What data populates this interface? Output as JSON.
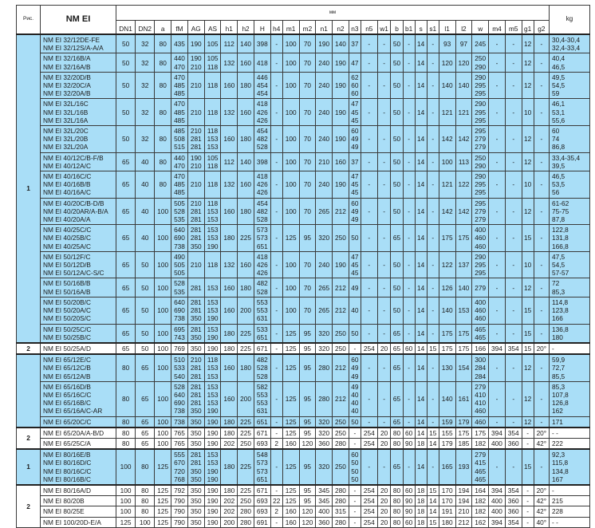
{
  "header": {
    "fig": "Рис.",
    "model": "NM EI",
    "mm": "мм",
    "kg": "kg",
    "columns": [
      "DN1",
      "DN2",
      "a",
      "fM",
      "AG",
      "AS",
      "h1",
      "h2",
      "H",
      "h4",
      "m1",
      "m2",
      "n1",
      "n2",
      "n3",
      "n5",
      "w1",
      "b",
      "b1",
      "s",
      "s1",
      "l1",
      "l2",
      "w",
      "m4",
      "m5",
      "g1",
      "g2"
    ]
  },
  "colors": {
    "blue_row": "#a9def7",
    "white_row": "#ffffff",
    "border": "#3a3a3a"
  },
  "groups": [
    {
      "fig": "1",
      "style": "blue",
      "rows": [
        [
          "NM EI  32/12DE-FE\nNM EI  32/12S/A-A/A",
          "50",
          "32",
          "80",
          "435",
          "190",
          "105",
          "112",
          "140",
          "398",
          "-",
          "100",
          "70",
          "190",
          "140",
          "37",
          "-",
          "-",
          "50",
          "-",
          "14",
          "-",
          "93",
          "97",
          "245",
          "-",
          "-",
          "12",
          "-",
          "30,4-30,4\n32,4-33,4"
        ],
        [
          "NM EI  32/16B/A\nNM EI  32/16A/B",
          "50",
          "32",
          "80",
          "440\n470",
          "190\n210",
          "105\n118",
          "132",
          "160",
          "418",
          "-",
          "100",
          "70",
          "240",
          "190",
          "47",
          "-",
          "-",
          "50",
          "-",
          "14",
          "-",
          "120",
          "120",
          "250\n290",
          "-",
          "-",
          "12",
          "-",
          "40,4\n46,5"
        ],
        [
          "NM EI  32/20D/B\nNM EI  32/20C/A\nNM EI  32/20A/B",
          "50",
          "32",
          "80",
          "470\n485\n485",
          "210",
          "118",
          "160",
          "180",
          "446\n454\n454",
          "-",
          "100",
          "70",
          "240",
          "190",
          "62\n60\n60",
          "-",
          "-",
          "50",
          "-",
          "14",
          "-",
          "140",
          "140",
          "290\n295\n295",
          "-",
          "-",
          "12",
          "-",
          "49,5\n54,5\n59"
        ],
        [
          "NM EI  32L/16C\nNM EI  32L/16B\nNM EI  32L/16A",
          "50",
          "32",
          "80",
          "470\n485\n485",
          "210",
          "118",
          "132",
          "160",
          "418\n426\n426",
          "-",
          "100",
          "70",
          "240",
          "190",
          "47\n45\n45",
          "-",
          "-",
          "50",
          "-",
          "14",
          "-",
          "121",
          "121",
          "290\n295\n295",
          "-",
          "-",
          "10",
          "-",
          "46,1\n53,1\n55,6"
        ],
        [
          "NM EI  32L/20C\nNM EI  32L/20B\nNM EI  32L/20A",
          "50",
          "32",
          "80",
          "485\n508\n515",
          "210\n281\n281",
          "118\n153\n153",
          "160",
          "180",
          "454\n482\n528",
          "-",
          "100",
          "70",
          "240",
          "190",
          "60\n49\n49",
          "-",
          "-",
          "50",
          "-",
          "14",
          "-",
          "142",
          "142",
          "295\n279\n279",
          "-",
          "-",
          "12",
          "-",
          "60\n74\n86,8"
        ],
        [
          "NM EI  40/12C/B-F/B\nNM EI  40/12A/C",
          "65",
          "40",
          "80",
          "440\n470",
          "190\n210",
          "105\n118",
          "112",
          "140",
          "398",
          "-",
          "100",
          "70",
          "210",
          "160",
          "37",
          "-",
          "-",
          "50",
          "-",
          "14",
          "-",
          "100",
          "113",
          "250\n290",
          "-",
          "-",
          "12",
          "-",
          "33,4-35,4\n39,5"
        ],
        [
          "NM EI  40/16C/C\nNM EI  40/16B/B\nNM EI  40/16A/C",
          "65",
          "40",
          "80",
          "470\n485\n485",
          "210",
          "118",
          "132",
          "160",
          "418\n426\n426",
          "-",
          "100",
          "70",
          "240",
          "190",
          "47\n45\n45",
          "-",
          "-",
          "50",
          "-",
          "14",
          "-",
          "121",
          "122",
          "290\n295\n295",
          "-",
          "-",
          "10",
          "-",
          "46,5\n53,5\n56"
        ],
        [
          "NM EI  40/20C/B-D/B\nNM EI  40/20AR/A-B/A\nNM EI  40/20A/A",
          "65",
          "40",
          "100",
          "505\n528\n535",
          "210\n281\n281",
          "118\n153\n153",
          "160",
          "180",
          "454\n482\n528",
          "-",
          "100",
          "70",
          "265",
          "212",
          "60\n49\n49",
          "-",
          "-",
          "50",
          "-",
          "14",
          "-",
          "142",
          "142",
          "295\n279\n279",
          "-",
          "-",
          "12",
          "-",
          "61-62\n75-75\n87,8"
        ],
        [
          "NM EI  40/25C/C\nNM EI  40/25B/C\nNM EI  40/25A/C",
          "65",
          "40",
          "100",
          "640\n690\n738",
          "281\n281\n350",
          "153\n153\n190",
          "180",
          "225",
          "573\n573\n651",
          "-",
          "125",
          "95",
          "320",
          "250",
          "50",
          "-",
          "-",
          "65",
          "-",
          "14",
          "-",
          "175",
          "175",
          "400\n460\n460",
          "-",
          "-",
          "15",
          "-",
          "122,8\n131,8\n166,8"
        ],
        [
          "NM EI  50/12F/C\nNM EI  50/12D/B\nNM EI  50/12A/C-S/C",
          "65",
          "50",
          "100",
          "490\n505\n505",
          "210",
          "118",
          "132",
          "160",
          "418\n426\n426",
          "-",
          "100",
          "70",
          "240",
          "190",
          "47\n45\n45",
          "-",
          "-",
          "50",
          "-",
          "14",
          "-",
          "122",
          "137",
          "290\n295\n295",
          "-",
          "-",
          "10",
          "-",
          "47,5\n54,5\n57-57"
        ],
        [
          "NM EI  50/16B/B\nNM EI  50/16A/B",
          "65",
          "50",
          "100",
          "528\n535",
          "281",
          "153",
          "160",
          "180",
          "482\n528",
          "-",
          "100",
          "70",
          "265",
          "212",
          "49",
          "-",
          "-",
          "50",
          "-",
          "14",
          "-",
          "126",
          "140",
          "279",
          "-",
          "-",
          "12",
          "-",
          "72\n85,3"
        ],
        [
          "NM EI  50/20B/C\nNM EI  50/20A/C\nNM EI  50/20S/C",
          "65",
          "50",
          "100",
          "640\n690\n738",
          "281\n281\n350",
          "153\n153\n190",
          "160",
          "200",
          "553\n553\n631",
          "-",
          "100",
          "70",
          "265",
          "212",
          "40",
          "-",
          "-",
          "50",
          "-",
          "14",
          "-",
          "140",
          "153",
          "400\n460\n460",
          "-",
          "-",
          "15",
          "-",
          "114,8\n123,8\n166"
        ],
        [
          "NM EI  50/25C/C\nNM EI  50/25B/C",
          "65",
          "50",
          "100",
          "695\n743",
          "281\n350",
          "153\n190",
          "180",
          "225",
          "533\n651",
          "-",
          "125",
          "95",
          "320",
          "250",
          "50",
          "-",
          "-",
          "65",
          "-",
          "14",
          "-",
          "175",
          "175",
          "465\n465",
          "-",
          "-",
          "15",
          "-",
          "136,8\n180"
        ]
      ]
    },
    {
      "fig": "2",
      "style": "white",
      "rows": [
        [
          "NM EI  50/25A/D",
          "65",
          "50",
          "100",
          "769",
          "350",
          "190",
          "180",
          "225",
          "671",
          "-",
          "125",
          "95",
          "320",
          "250",
          "-",
          "254",
          "20",
          "65",
          "60",
          "14",
          "15",
          "175",
          "175",
          "166",
          "394",
          "354",
          "15",
          "20°",
          "-"
        ]
      ]
    },
    {
      "fig": "",
      "style": "blue",
      "rows": [
        [
          "NM EI  65/12E/C\nNM EI  65/12C/B\nNM EI  65/12A/B",
          "80",
          "65",
          "100",
          "510\n533\n540",
          "210\n281\n281",
          "118\n153\n153",
          "160",
          "180",
          "482\n528\n528",
          "-",
          "125",
          "95",
          "280",
          "212",
          "60\n49\n49",
          "-",
          "-",
          "65",
          "-",
          "14",
          "-",
          "130",
          "154",
          "300\n284\n284",
          "-",
          "-",
          "12",
          "-",
          "59,9\n72,7\n85,5"
        ],
        [
          "NM EI  65/16D/B\nNM EI  65/16C/C\nNM EI  65/16B/C\nNM EI  65/16A/C-AR",
          "80",
          "65",
          "100",
          "528\n640\n690\n738",
          "281\n281\n281\n350",
          "153\n153\n153\n190",
          "160",
          "200",
          "582\n553\n553\n631",
          "-",
          "125",
          "95",
          "280",
          "212",
          "49\n40\n40\n40",
          "-",
          "-",
          "65",
          "-",
          "14",
          "-",
          "140",
          "161",
          "279\n410\n410\n460",
          "-",
          "-",
          "12",
          "-",
          "85,3\n107,8\n126,8\n162"
        ],
        [
          "NM EI  65/20C/C",
          "80",
          "65",
          "100",
          "738",
          "350",
          "190",
          "180",
          "225",
          "651",
          "-",
          "125",
          "95",
          "320",
          "250",
          "50",
          "-",
          "-",
          "65",
          "-",
          "14",
          "-",
          "159",
          "179",
          "460",
          "-",
          "-",
          "12",
          "-",
          "171"
        ]
      ]
    },
    {
      "fig": "2",
      "style": "white",
      "rows": [
        [
          "NM EI  65/20A/A-B/D",
          "80",
          "65",
          "100",
          "765",
          "350",
          "190",
          "180",
          "225",
          "671",
          "-",
          "125",
          "95",
          "320",
          "250",
          "-",
          "254",
          "20",
          "80",
          "60",
          "14",
          "15",
          "155",
          "175",
          "175",
          "394",
          "354",
          "-",
          "20°",
          "- -"
        ],
        [
          "NM EI  65/25C/A",
          "80",
          "65",
          "100",
          "765",
          "350",
          "190",
          "202",
          "250",
          "693",
          "2",
          "160",
          "120",
          "360",
          "280",
          "-",
          "254",
          "20",
          "80",
          "90",
          "18",
          "14",
          "179",
          "185",
          "182",
          "400",
          "360",
          "-",
          "42°",
          "222"
        ]
      ]
    },
    {
      "fig": "1",
      "style": "blue",
      "rows": [
        [
          "NM EI  80/16E/B\nNM EI  80/16D/C\nNM EI  80/16C/C\nNM EI  80/16B/C",
          "100",
          "80",
          "125",
          "555\n670\n720\n768",
          "281\n281\n350\n350",
          "153\n153\n190\n190",
          "180",
          "225",
          "548\n573\n573\n651",
          "-",
          "125",
          "95",
          "320",
          "250",
          "60\n50\n50\n50",
          "-",
          "-",
          "65",
          "-",
          "14",
          "-",
          "165",
          "193",
          "279\n415\n465\n465",
          "-",
          "-",
          "15",
          "-",
          "92,3\n115,8\n134,8\n167"
        ]
      ]
    },
    {
      "fig": "2",
      "style": "white",
      "rows": [
        [
          "NM EI  80/16A/D",
          "100",
          "80",
          "125",
          "792",
          "350",
          "190",
          "180",
          "225",
          "671",
          "-",
          "125",
          "95",
          "345",
          "280",
          "-",
          "254",
          "20",
          "80",
          "60",
          "18",
          "15",
          "170",
          "194",
          "164",
          "394",
          "354",
          "-",
          "20°",
          "-"
        ],
        [
          "NM EI  80/20B",
          "100",
          "80",
          "125",
          "790",
          "350",
          "190",
          "202",
          "250",
          "693",
          "22",
          "125",
          "95",
          "345",
          "280",
          "-",
          "254",
          "20",
          "80",
          "90",
          "18",
          "14",
          "170",
          "194",
          "182",
          "400",
          "360",
          "-",
          "42°",
          "215"
        ],
        [
          "NM EI  80/25E",
          "100",
          "80",
          "125",
          "790",
          "350",
          "190",
          "202",
          "280",
          "693",
          "2",
          "160",
          "120",
          "400",
          "315",
          "-",
          "254",
          "20",
          "80",
          "90",
          "18",
          "14",
          "191",
          "210",
          "182",
          "400",
          "360",
          "-",
          "42°",
          "228"
        ],
        [
          "NM EI 100/20D-E/A",
          "125",
          "100",
          "125",
          "790",
          "350",
          "190",
          "200",
          "280",
          "691",
          "-",
          "160",
          "120",
          "360",
          "280",
          "-",
          "254",
          "20",
          "80",
          "60",
          "18",
          "15",
          "180",
          "212",
          "162",
          "394",
          "354",
          "-",
          "40°",
          "- -"
        ]
      ]
    }
  ]
}
